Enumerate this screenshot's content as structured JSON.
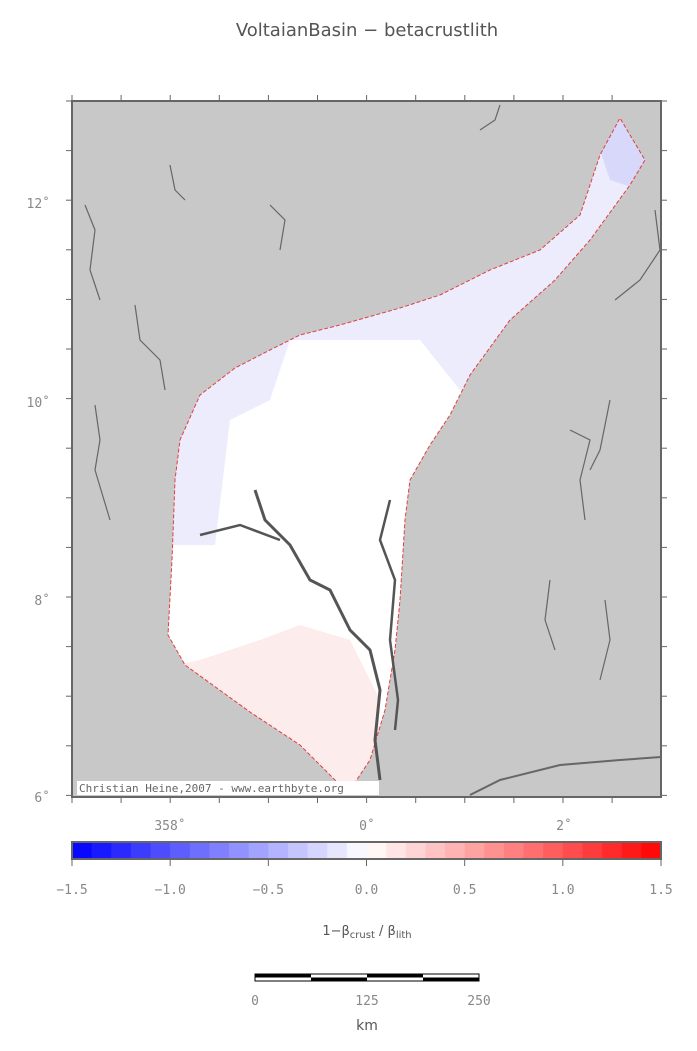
{
  "title": "VoltaianBasin − betacrustlith",
  "map": {
    "lat_labels": [
      "12˚",
      "10˚",
      "8˚",
      "6˚"
    ],
    "lon_labels": [
      "358˚",
      "0˚",
      "2˚"
    ],
    "credit": "Christian Heine,2007 - www.earthbyte.org"
  },
  "colorbar": {
    "ticks": [
      "−1.5",
      "−1.0",
      "−0.5",
      "0.0",
      "0.5",
      "1.0",
      "1.5"
    ],
    "label": [
      "1−β",
      "crust",
      " / β",
      "lith"
    ]
  },
  "scalebar": {
    "labels": [
      "0",
      "125",
      "250"
    ],
    "unit": "km"
  }
}
